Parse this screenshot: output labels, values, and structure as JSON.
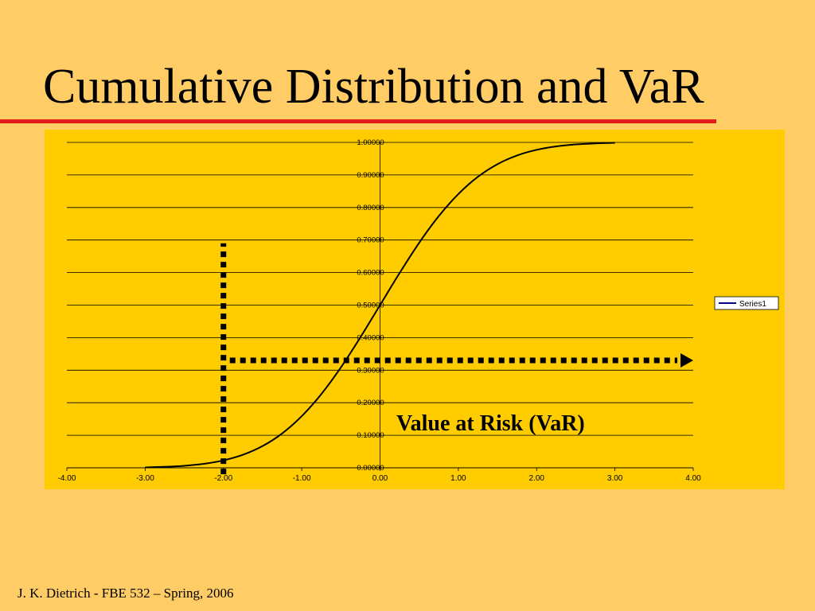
{
  "slide": {
    "title": "Cumulative Distribution and VaR",
    "footer": "J. K. Dietrich - FBE 532 – Spring, 2006",
    "title_rule_color": "#e31b1b",
    "background_color": "#ffcc66"
  },
  "chart_data": {
    "type": "line",
    "title": "",
    "xlabel": "",
    "ylabel": "",
    "xlim": [
      -4.0,
      4.0
    ],
    "ylim": [
      0.0,
      1.0
    ],
    "x_ticks": [
      "-4.00",
      "-3.00",
      "-2.00",
      "-1.00",
      "0.00",
      "1.00",
      "2.00",
      "3.00",
      "4.00"
    ],
    "y_ticks": [
      "0.00000",
      "0.10000",
      "0.20000",
      "0.30000",
      "0.40000",
      "0.50000",
      "0.60000",
      "0.70000",
      "0.80000",
      "0.90000",
      "1.00000"
    ],
    "grid": "horizontal",
    "legend": "right",
    "plot_background": "#ffcc00",
    "series": [
      {
        "name": "Series1",
        "color": "#000080",
        "x": [
          -3.0,
          -2.75,
          -2.5,
          -2.25,
          -2.0,
          -1.75,
          -1.5,
          -1.25,
          -1.0,
          -0.75,
          -0.5,
          -0.25,
          0.0,
          0.25,
          0.5,
          0.75,
          1.0,
          1.25,
          1.5,
          1.75,
          2.0,
          2.25,
          2.5,
          2.75,
          3.0
        ],
        "values": [
          0.0013,
          0.003,
          0.0062,
          0.0122,
          0.0228,
          0.0401,
          0.0668,
          0.1056,
          0.1587,
          0.2266,
          0.3085,
          0.4013,
          0.5,
          0.5987,
          0.6915,
          0.7734,
          0.8413,
          0.8944,
          0.9332,
          0.9599,
          0.9772,
          0.9878,
          0.9938,
          0.997,
          0.9987
        ]
      }
    ],
    "annotations": [
      {
        "type": "vertical-dotted-arrow",
        "x": -2.0,
        "y_from": -0.02,
        "y_to": 0.69
      },
      {
        "type": "horizontal-dotted-arrow",
        "y": 0.33,
        "x_from": -2.0,
        "x_to": 4.0
      },
      {
        "text": "Value at Risk (VaR)"
      }
    ]
  }
}
